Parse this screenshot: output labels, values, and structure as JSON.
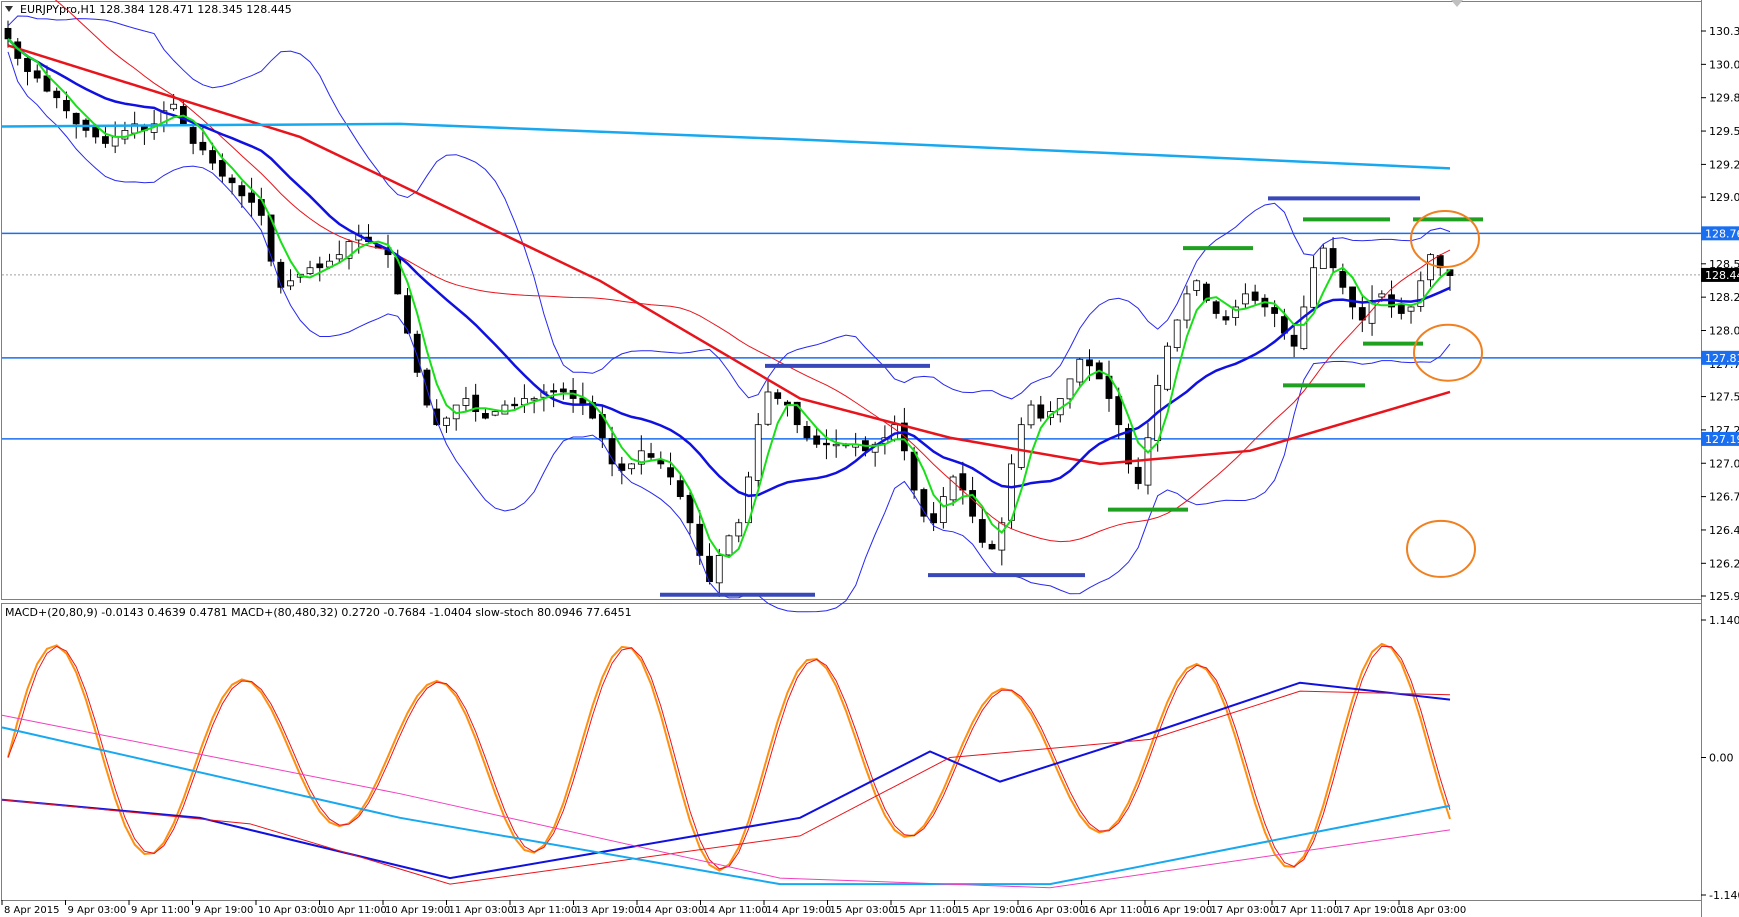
{
  "window": {
    "main_title": "EURJPYpro,H1  128.384 128.471 128.345 128.445",
    "sub_title": "MACD+(20,80,9) -0.0143 0.4639 0.4781  MACD+(80,480,32) 0.2720 -0.7684 -1.0404  slow-stoch 80.0946 77.6451"
  },
  "main_axis": {
    "ticks": [
      "130.310",
      "130.055",
      "129.800",
      "129.545",
      "129.290",
      "129.040",
      "128.785",
      "128.530",
      "128.275",
      "128.020",
      "127.765",
      "127.515",
      "127.260",
      "127.005",
      "126.750",
      "126.495",
      "126.240",
      "125.990"
    ],
    "price_tags": [
      "128.763",
      "128.445",
      "127.811",
      "127.191"
    ]
  },
  "sub_axis": {
    "ticks": [
      "1.1401",
      "0.00",
      "-1.1401"
    ]
  },
  "time_axis": [
    "8 Apr 2015",
    "9 Apr 03:00",
    "9 Apr 11:00",
    "9 Apr 19:00",
    "10 Apr 03:00",
    "10 Apr 11:00",
    "10 Apr 19:00",
    "11 Apr 03:00",
    "13 Apr 11:00",
    "13 Apr 19:00",
    "14 Apr 03:00",
    "14 Apr 11:00",
    "14 Apr 19:00",
    "15 Apr 03:00",
    "15 Apr 11:00",
    "15 Apr 19:00",
    "16 Apr 03:00",
    "16 Apr 11:00",
    "16 Apr 19:00",
    "17 Apr 03:00",
    "17 Apr 11:00",
    "17 Apr 19:00",
    "18 Apr 03:00"
  ],
  "colors": {
    "blue_ma": "#1010e0",
    "red_ma": "#e8141c",
    "green_ma": "#18e018",
    "cyan_ma": "#18a8f0",
    "bands": "#2828f0",
    "hlines": "#1a6ef0",
    "circles": "#f08020",
    "macd_orange": "#ff9010",
    "macd_pink": "#f040c0"
  },
  "chart_data": {
    "type": "candlestick",
    "symbol": "EURJPYpro",
    "timeframe": "H1",
    "ohlc_readout": {
      "open": 128.384,
      "high": 128.471,
      "low": 128.345,
      "close": 128.445
    },
    "ylim": [
      125.99,
      130.31
    ],
    "horizontal_levels": [
      128.763,
      127.811,
      127.191
    ],
    "closes": [
      130.25,
      130.1,
      130.0,
      129.95,
      129.85,
      129.8,
      129.7,
      129.6,
      129.55,
      129.5,
      129.45,
      129.5,
      129.55,
      129.6,
      129.55,
      129.6,
      129.7,
      129.75,
      129.6,
      129.45,
      129.4,
      129.3,
      129.2,
      129.15,
      129.05,
      129.0,
      128.9,
      128.55,
      128.35,
      128.4,
      128.45,
      128.5,
      128.5,
      128.55,
      128.6,
      128.7,
      128.75,
      128.7,
      128.65,
      128.6,
      128.3,
      128.0,
      127.7,
      127.45,
      127.3,
      127.35,
      127.45,
      127.5,
      127.4,
      127.35,
      127.4,
      127.45,
      127.45,
      127.5,
      127.5,
      127.55,
      127.55,
      127.55,
      127.5,
      127.45,
      127.35,
      127.2,
      127.0,
      126.95,
      127.0,
      127.1,
      127.05,
      127.0,
      126.9,
      126.75,
      126.55,
      126.3,
      126.1,
      126.3,
      126.45,
      126.55,
      126.9,
      127.3,
      127.55,
      127.5,
      127.45,
      127.3,
      127.2,
      127.15,
      127.15,
      127.15,
      127.15,
      127.15,
      127.1,
      127.15,
      127.2,
      127.3,
      127.1,
      126.8,
      126.6,
      126.55,
      126.75,
      126.9,
      126.8,
      126.6,
      126.4,
      126.35,
      126.55,
      127.0,
      127.3,
      127.45,
      127.35,
      127.4,
      127.5,
      127.65,
      127.8,
      127.75,
      127.65,
      127.5,
      127.3,
      127.0,
      126.85,
      127.2,
      127.6,
      127.9,
      128.1,
      128.3,
      128.4,
      128.25,
      128.15,
      128.1,
      128.2,
      128.3,
      128.25,
      128.2,
      128.15,
      128.0,
      127.9,
      128.2,
      128.5,
      128.65,
      128.5,
      128.35,
      128.2,
      128.1,
      128.25,
      128.3,
      128.2,
      128.15,
      128.2,
      128.4,
      128.6,
      128.5,
      128.44
    ]
  }
}
